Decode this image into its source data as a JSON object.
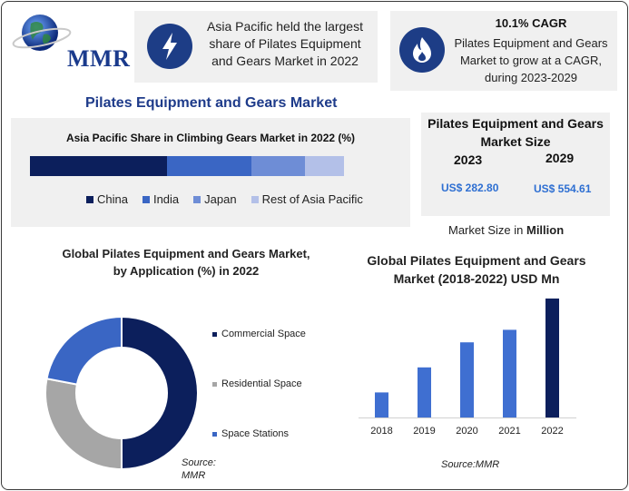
{
  "logo": {
    "text": "MMR"
  },
  "highlight": {
    "text": "Asia Pacific held the largest share of Pilates Equipment and Gears Market in 2022"
  },
  "cagr": {
    "title": "10.1% CAGR",
    "text": "Pilates Equipment and Gears Market to grow at a CAGR, during 2023-2029"
  },
  "main_title": "Pilates Equipment and Gears Market",
  "market_size": {
    "title": "Pilates Equipment and Gears Market Size",
    "year_start": "2023",
    "year_end": "2029",
    "value_start": "US$ 282.80",
    "value_end": "US$ 554.61",
    "unit_prefix": "Market Size in ",
    "unit_bold": "Million"
  },
  "colors": {
    "navy": "#0c1f5c",
    "blue": "#3a66c4",
    "mid_blue": "#6e8dd6",
    "light_blue": "#b3c0e8",
    "gray": "#a6a6a6",
    "bar": "#3f6fd1",
    "bar_last": "#0c1f5c"
  },
  "chart_data": [
    {
      "type": "bar",
      "orientation": "horizontal-stacked",
      "title": "Asia Pacific Share in Climbing Gears Market in 2022 (%)",
      "series": [
        {
          "name": "China",
          "values": [
            43.5
          ]
        },
        {
          "name": "India",
          "values": [
            27
          ]
        },
        {
          "name": "Japan",
          "values": [
            17
          ]
        },
        {
          "name": "Rest of Asia Pacific",
          "values": [
            12.5
          ]
        }
      ]
    },
    {
      "type": "pie",
      "title": "Global Pilates Equipment and Gears Market, by Application (%) in 2022",
      "categories": [
        "Commercial Space",
        "Residential Space",
        "Space Stations"
      ],
      "values": [
        50,
        28,
        22
      ],
      "source": "Source: MMR"
    },
    {
      "type": "bar",
      "title": "Global Pilates Equipment and Gears Market (2018-2022) USD Mn",
      "categories": [
        "2018",
        "2019",
        "2020",
        "2021",
        "2022"
      ],
      "values": [
        28,
        56,
        84,
        98,
        133
      ],
      "ylim": [
        0,
        140
      ],
      "grid": false,
      "source": "Source:MMR"
    }
  ]
}
